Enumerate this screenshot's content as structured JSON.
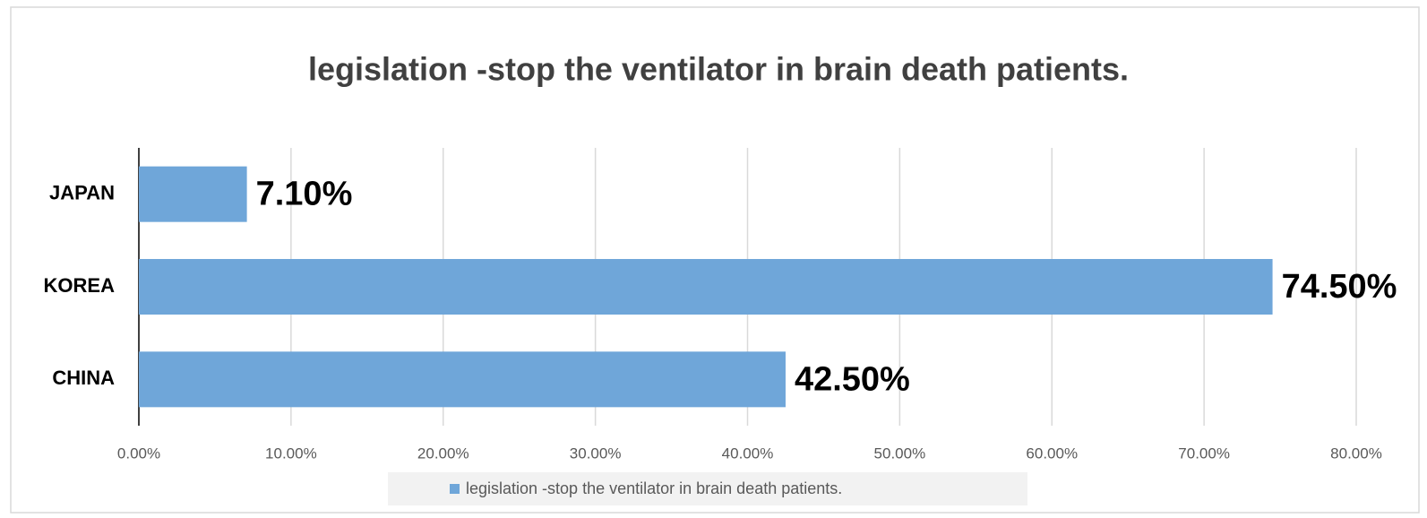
{
  "chart_data": {
    "type": "hbar",
    "title": "legislation -stop the ventilator in brain death patients.",
    "categories": [
      "JAPAN",
      "KOREA",
      "CHINA"
    ],
    "series": [
      {
        "name": "legislation -stop the ventilator in brain death patients.",
        "color": "#6fa6d9",
        "values": [
          7.1,
          74.5,
          42.5
        ],
        "value_labels": [
          "7.10%",
          "74.50%",
          "42.50%"
        ]
      }
    ],
    "xlim": [
      0,
      80
    ],
    "xticks": [
      {
        "value": 0,
        "label": "0.00%"
      },
      {
        "value": 10,
        "label": "10.00%"
      },
      {
        "value": 20,
        "label": "20.00%"
      },
      {
        "value": 30,
        "label": "30.00%"
      },
      {
        "value": 40,
        "label": "40.00%"
      },
      {
        "value": 50,
        "label": "50.00%"
      },
      {
        "value": 60,
        "label": "60.00%"
      },
      {
        "value": 70,
        "label": "70.00%"
      },
      {
        "value": 80,
        "label": "80.00%"
      }
    ],
    "grid": true,
    "legend": "bottom"
  }
}
